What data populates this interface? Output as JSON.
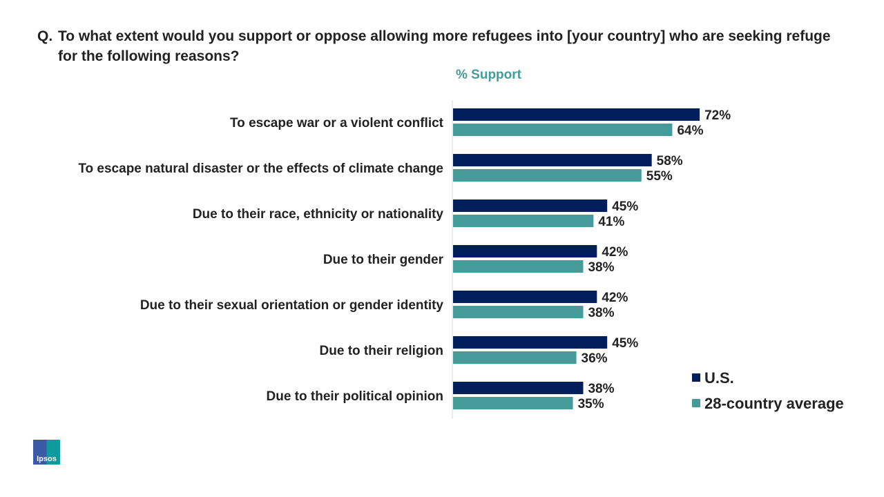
{
  "question": {
    "prefix": "Q.",
    "text": "To what extent would you support or oppose allowing more refugees into [your country] who are seeking refuge for the following reasons?"
  },
  "logo": {
    "text": "Ipsos"
  },
  "chart_data": {
    "type": "bar",
    "orientation": "horizontal",
    "subtitle": "% Support",
    "categories": [
      "To escape war or a violent conflict",
      "To escape natural disaster or the effects of climate change",
      "Due to their race, ethnicity or nationality",
      "Due to their gender",
      "Due to their sexual orientation or gender identity",
      "Due to their religion",
      "Due to their political opinion"
    ],
    "series": [
      {
        "name": "U.S.",
        "color": "#001f5b",
        "values": [
          72,
          58,
          45,
          42,
          42,
          45,
          38
        ]
      },
      {
        "name": "28-country average",
        "color": "#459b9a",
        "values": [
          64,
          55,
          41,
          38,
          38,
          36,
          35
        ]
      }
    ],
    "value_suffix": "%",
    "xlim": [
      0,
      100
    ],
    "grid": false,
    "legend_placement": "bottom-right"
  }
}
